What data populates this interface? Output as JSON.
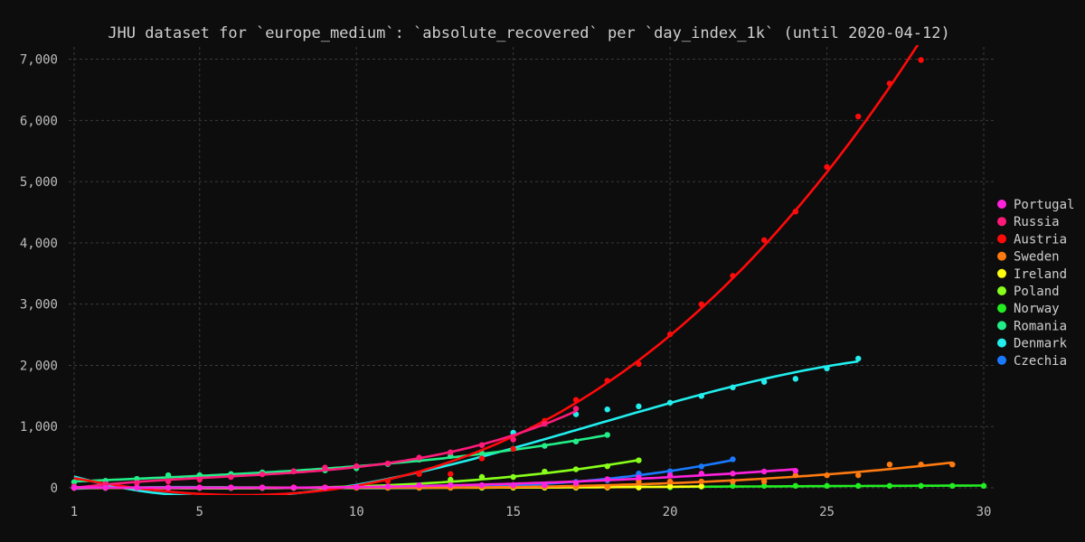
{
  "chart_data": {
    "type": "scatter",
    "title": "JHU dataset for `europe_medium`: `absolute_recovered` per `day_index_1k` (until 2020-04-12)",
    "xlabel": "",
    "ylabel": "",
    "xlim": [
      1,
      30
    ],
    "ylim": [
      0,
      7200
    ],
    "x_ticks": [
      1,
      5,
      10,
      15,
      20,
      25,
      30
    ],
    "y_ticks": [
      0,
      1000,
      2000,
      3000,
      4000,
      5000,
      6000,
      7000
    ],
    "x_tick_labels": [
      "1",
      "5",
      "10",
      "15",
      "20",
      "25",
      "30"
    ],
    "y_tick_labels": [
      "0",
      "1,000",
      "2,000",
      "3,000",
      "4,000",
      "5,000",
      "6,000",
      "7,000"
    ],
    "grid": true,
    "legend_position": "right",
    "series": [
      {
        "name": "Portugal",
        "color": "#ff22dd",
        "x": [
          1,
          2,
          3,
          4,
          5,
          6,
          7,
          8,
          9,
          10,
          11,
          12,
          13,
          14,
          15,
          16,
          17,
          18,
          19,
          20,
          21,
          22,
          23,
          24
        ],
        "y": [
          0,
          0,
          0,
          2,
          3,
          5,
          5,
          5,
          5,
          14,
          22,
          43,
          43,
          43,
          43,
          43,
          75,
          140,
          169,
          205,
          233,
          233,
          266,
          277
        ]
      },
      {
        "name": "Russia",
        "color": "#ff1a7a",
        "x": [
          1,
          2,
          3,
          4,
          5,
          6,
          7,
          8,
          9,
          10,
          11,
          12,
          13,
          14,
          15,
          16,
          17
        ],
        "y": [
          22,
          59,
          80,
          105,
          134,
          176,
          221,
          270,
          330,
          355,
          398,
          493,
          580,
          698,
          788,
          1045,
          1291
        ]
      },
      {
        "name": "Austria",
        "color": "#ff0a0a",
        "x": [
          1,
          2,
          3,
          4,
          5,
          6,
          7,
          8,
          9,
          10,
          11,
          12,
          13,
          14,
          15,
          16,
          17,
          18,
          19,
          20,
          21,
          22,
          23,
          24,
          25,
          26,
          27,
          28
        ],
        "y": [
          0,
          6,
          6,
          6,
          9,
          9,
          9,
          9,
          9,
          9,
          112,
          225,
          225,
          479,
          636,
          1095,
          1436,
          1749,
          2022,
          2507,
          2998,
          3463,
          4046,
          4512,
          5240,
          6064,
          6604,
          6987
        ]
      },
      {
        "name": "Sweden",
        "color": "#ff7a10",
        "x": [
          1,
          2,
          3,
          4,
          5,
          6,
          7,
          8,
          9,
          10,
          11,
          12,
          13,
          14,
          15,
          16,
          17,
          18,
          19,
          20,
          21,
          22,
          23,
          24,
          25,
          26,
          27,
          28,
          29
        ],
        "y": [
          1,
          1,
          1,
          1,
          1,
          1,
          1,
          1,
          1,
          1,
          1,
          1,
          1,
          16,
          16,
          16,
          16,
          16,
          103,
          103,
          103,
          103,
          103,
          205,
          205,
          205,
          381,
          381,
          381
        ]
      },
      {
        "name": "Ireland",
        "color": "#ffff10",
        "x": [
          1,
          2,
          3,
          4,
          5,
          6,
          7,
          8,
          9,
          10,
          11,
          12,
          13,
          14,
          15,
          16,
          17,
          18,
          19,
          20,
          21
        ],
        "y": [
          0,
          0,
          0,
          0,
          0,
          0,
          0,
          5,
          5,
          5,
          5,
          5,
          5,
          5,
          5,
          5,
          5,
          5,
          5,
          25,
          25
        ]
      },
      {
        "name": "Poland",
        "color": "#88ff1a",
        "x": [
          1,
          2,
          3,
          4,
          5,
          6,
          7,
          8,
          9,
          10,
          11,
          12,
          13,
          14,
          15,
          16,
          17,
          18,
          19
        ],
        "y": [
          0,
          0,
          0,
          1,
          1,
          1,
          1,
          1,
          7,
          7,
          13,
          13,
          131,
          177,
          177,
          265,
          302,
          352,
          449
        ]
      },
      {
        "name": "Norway",
        "color": "#22ee22",
        "x": [
          1,
          2,
          3,
          4,
          5,
          6,
          7,
          8,
          9,
          10,
          11,
          12,
          13,
          14,
          15,
          16,
          17,
          18,
          19,
          20,
          21,
          22,
          23,
          24,
          25,
          26,
          27,
          28,
          29,
          30
        ],
        "y": [
          1,
          1,
          1,
          1,
          1,
          1,
          1,
          1,
          1,
          1,
          1,
          1,
          1,
          1,
          1,
          1,
          1,
          7,
          7,
          7,
          20,
          32,
          32,
          32,
          32,
          32,
          32,
          32,
          32,
          32
        ]
      },
      {
        "name": "Romania",
        "color": "#22ee88",
        "x": [
          1,
          2,
          3,
          4,
          5,
          6,
          7,
          8,
          9,
          10,
          11,
          12,
          13,
          14,
          15,
          16,
          17,
          18
        ],
        "y": [
          94,
          115,
          147,
          206,
          206,
          225,
          252,
          270,
          285,
          319,
          388,
          460,
          519,
          562,
          637,
          685,
          756,
          864
        ]
      },
      {
        "name": "Denmark",
        "color": "#22eeee",
        "x": [
          1,
          2,
          3,
          4,
          5,
          6,
          7,
          8,
          9,
          10,
          11,
          12,
          13,
          14,
          15,
          16,
          17,
          18,
          19,
          20,
          21,
          22,
          23,
          24,
          25,
          26
        ],
        "y": [
          1,
          1,
          1,
          1,
          1,
          1,
          1,
          1,
          1,
          1,
          1,
          1,
          1,
          1,
          900,
          1050,
          1200,
          1280,
          1330,
          1390,
          1500,
          1640,
          1730,
          1780,
          1950,
          2110
        ]
      },
      {
        "name": "Czechia",
        "color": "#1a7aff",
        "x": [
          1,
          2,
          3,
          4,
          5,
          6,
          7,
          8,
          9,
          10,
          11,
          12,
          13,
          14,
          15,
          16,
          17,
          18,
          19,
          20,
          21,
          22
        ],
        "y": [
          0,
          0,
          0,
          0,
          0,
          0,
          0,
          0,
          3,
          3,
          3,
          10,
          10,
          25,
          25,
          45,
          96,
          121,
          233,
          270,
          349,
          465
        ]
      }
    ]
  }
}
